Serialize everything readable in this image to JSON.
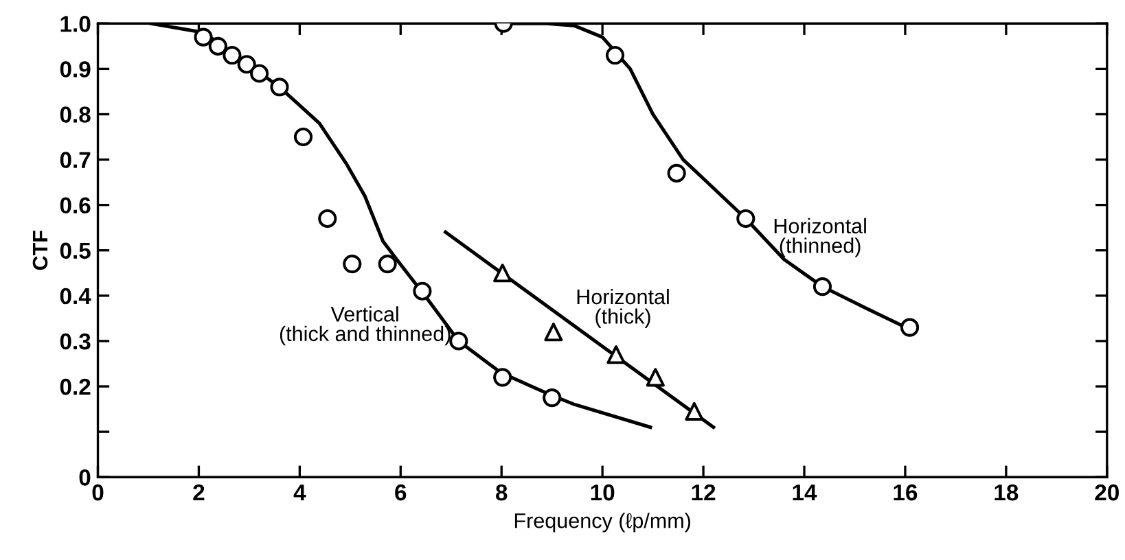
{
  "chart_data": {
    "type": "scatter",
    "xlabel": "Frequency (ℓp/mm)",
    "ylabel": "CTF",
    "xlim": [
      0,
      20
    ],
    "ylim": [
      0,
      1.0
    ],
    "xticks": [
      0,
      2,
      4,
      6,
      8,
      10,
      12,
      14,
      16,
      18,
      20
    ],
    "yticks": [
      0,
      {
        "value": 0.1,
        "label": null
      },
      0.2,
      0.3,
      0.4,
      0.5,
      0.6,
      0.7,
      0.8,
      0.9,
      {
        "value": 1.0,
        "label": "1.0"
      }
    ],
    "grid": false,
    "series": [
      {
        "marker": "circle",
        "color": "#000000",
        "x": [
          2.09,
          2.38,
          2.66,
          2.95,
          3.2,
          3.6,
          4.07,
          4.55,
          5.04,
          5.74,
          6.43,
          7.15,
          8.02,
          9.0
        ],
        "values": [
          0.97,
          0.95,
          0.93,
          0.91,
          0.89,
          0.86,
          0.75,
          0.57,
          0.47,
          0.47,
          0.41,
          0.3,
          0.22,
          0.175
        ]
      },
      {
        "type": "line",
        "name": "Vertical\n(thick and thinned)",
        "marker": "none",
        "line_style": "solid",
        "color": "#000000",
        "x": [
          1.05,
          2.1,
          3.6,
          4.39,
          4.93,
          5.29,
          5.65,
          5.99,
          6.55,
          7.15,
          7.99,
          9.0,
          9.45,
          10.95
        ],
        "values": [
          1.0,
          0.98,
          0.86,
          0.78,
          0.69,
          0.62,
          0.52,
          0.47,
          0.39,
          0.3,
          0.23,
          0.18,
          0.16,
          0.11
        ]
      },
      {
        "marker": "circle",
        "color": "#000000",
        "x": [
          8.04,
          10.25,
          11.47,
          12.84,
          14.36,
          16.09
        ],
        "values": [
          1.0,
          0.93,
          0.67,
          0.57,
          0.42,
          0.33
        ]
      },
      {
        "type": "line",
        "name": "Horizontal\n(thinned)",
        "marker": "none",
        "line_style": "solid",
        "color": "#000000",
        "x": [
          8.0,
          8.9,
          9.45,
          10.0,
          10.55,
          11.0,
          11.6,
          12.84,
          13.6,
          14.36,
          15.27,
          16.2
        ],
        "values": [
          1.0,
          1.0,
          0.995,
          0.97,
          0.9,
          0.8,
          0.7,
          0.57,
          0.48,
          0.42,
          0.37,
          0.32
        ]
      },
      {
        "marker": "triangle",
        "color": "#000000",
        "x": [
          8.02,
          9.03,
          10.27,
          11.05,
          11.82
        ],
        "values": [
          0.45,
          0.32,
          0.27,
          0.22,
          0.145
        ]
      },
      {
        "type": "line",
        "name": "Horizontal\n(thick)",
        "marker": "none",
        "line_style": "solid",
        "color": "#000000",
        "x": [
          6.89,
          12.2
        ],
        "values": [
          0.54,
          0.11
        ]
      }
    ]
  }
}
